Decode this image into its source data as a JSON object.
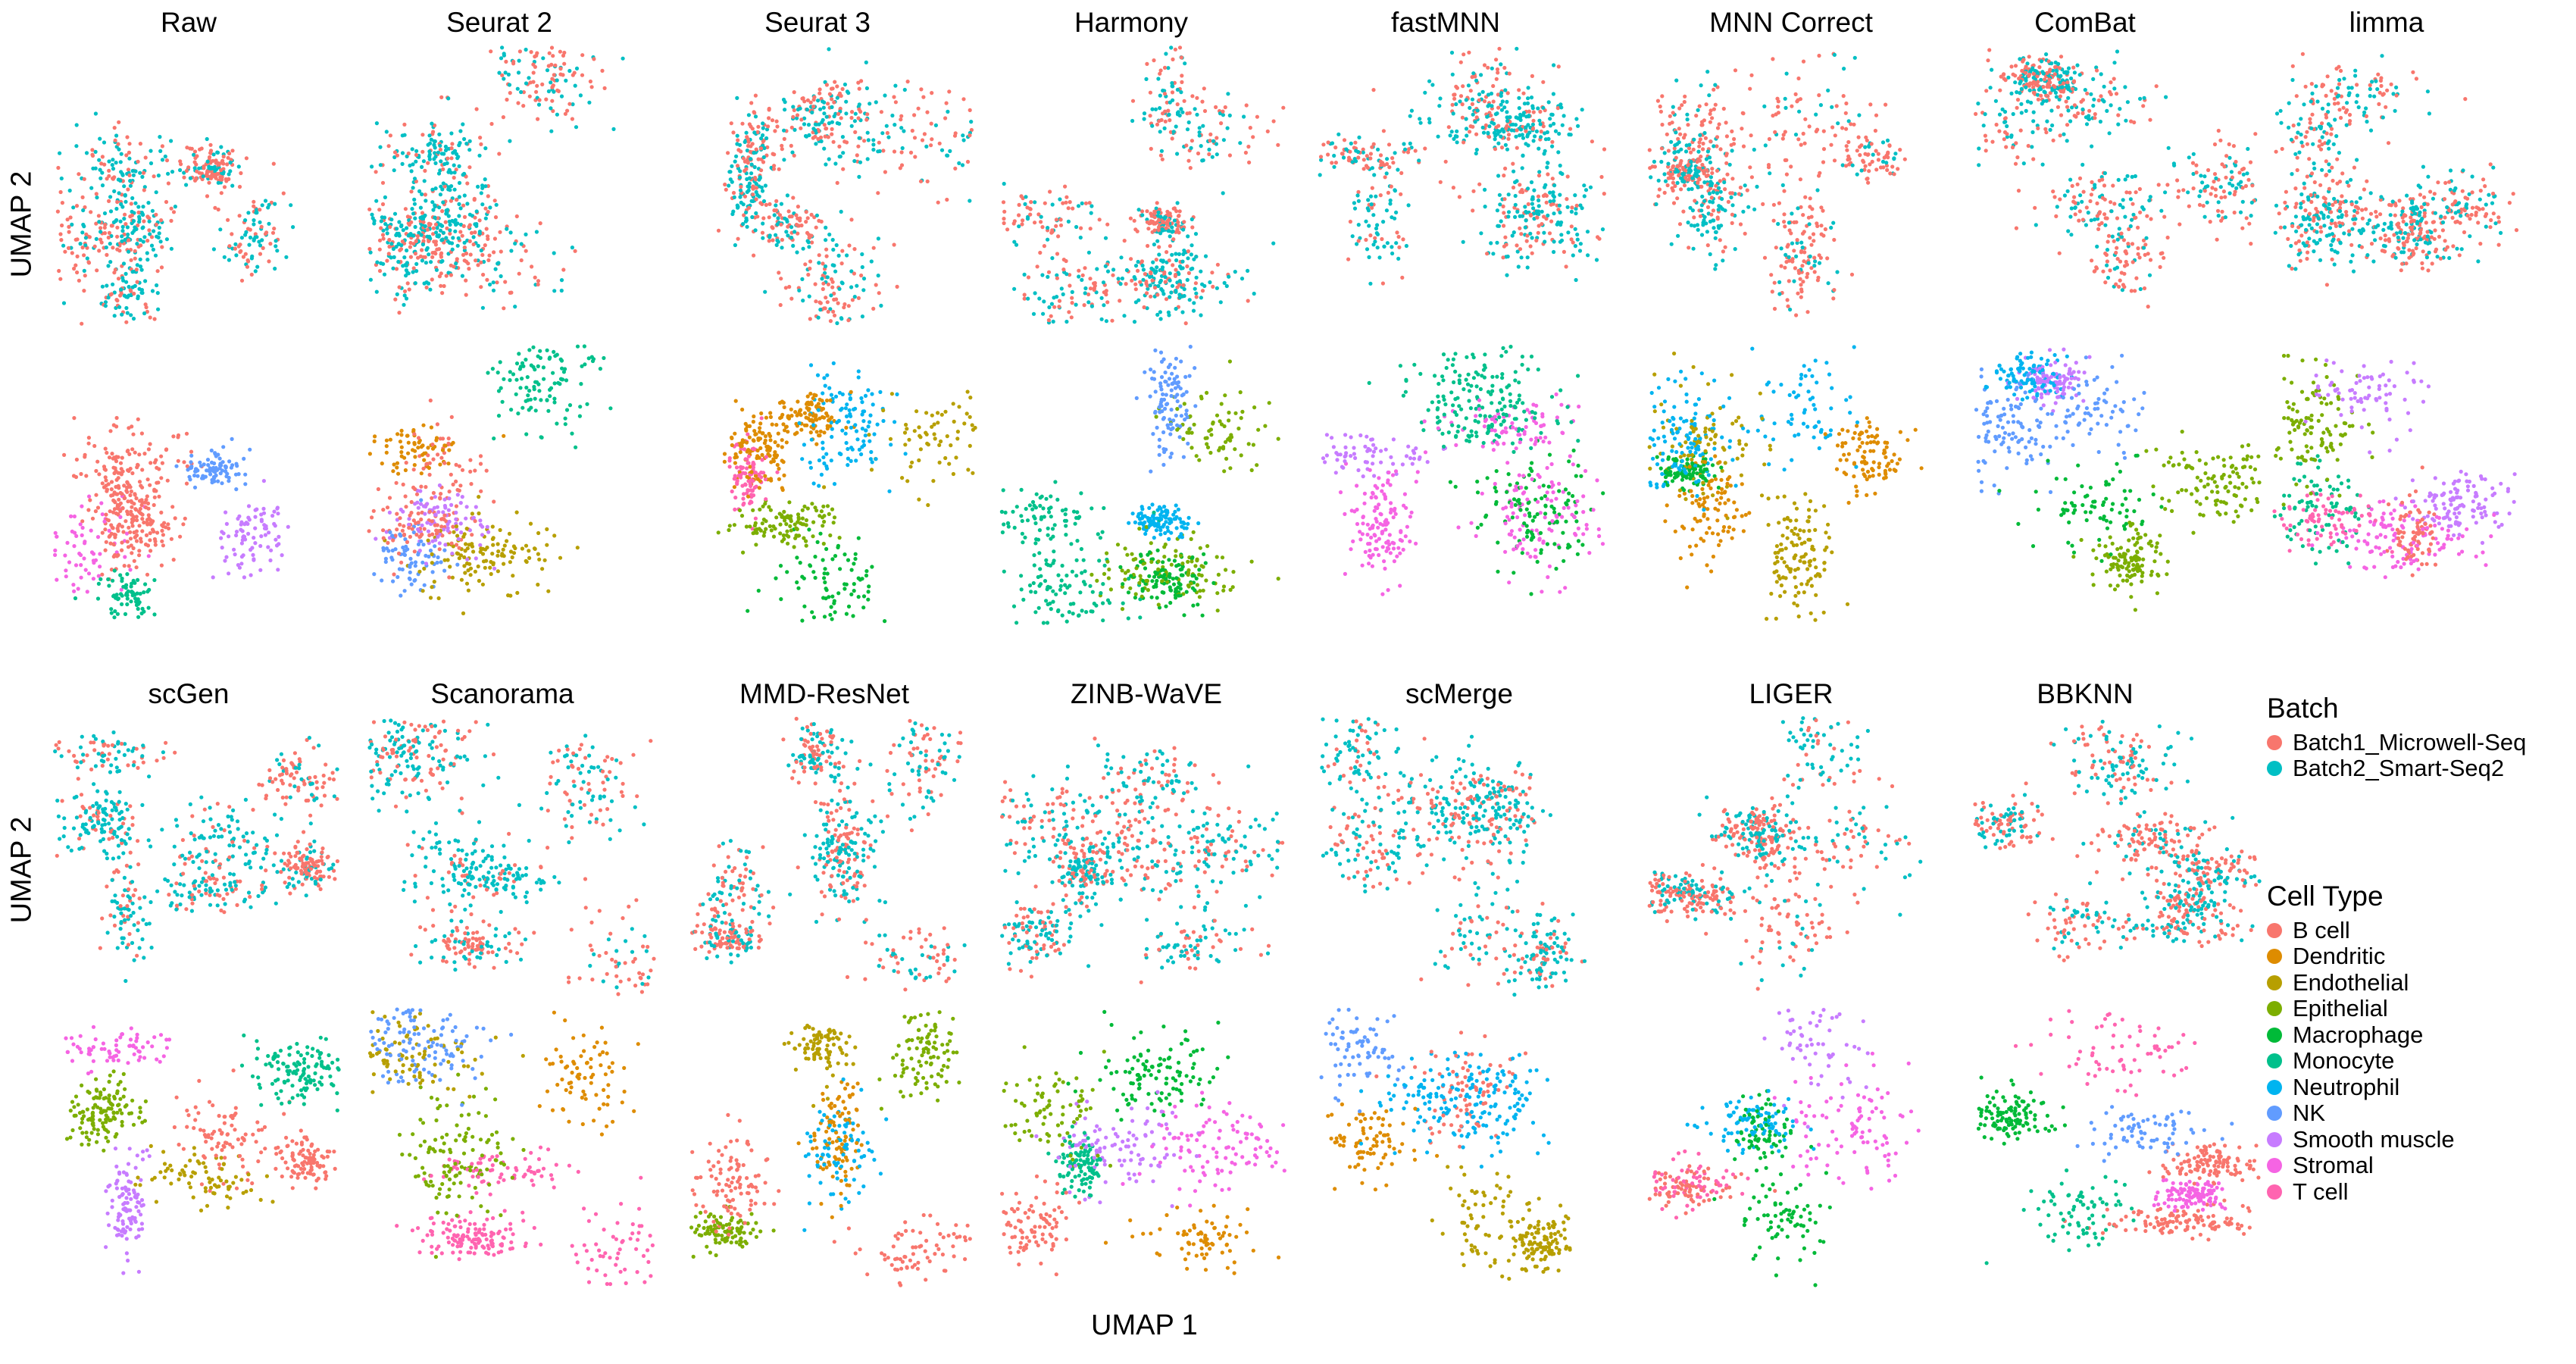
{
  "chart_data": {
    "type": "scatter",
    "xlabel": "UMAP 1",
    "ylabel": "UMAP 2",
    "methods": [
      "Raw",
      "Seurat 2",
      "Seurat 3",
      "Harmony",
      "fastMNN",
      "MNN Correct",
      "ComBat",
      "limma",
      "scGen",
      "Scanorama",
      "MMD-ResNet",
      "ZINB-WaVE",
      "scMerge",
      "LIGER",
      "BBKNN"
    ],
    "panel_rows": [
      "Batch",
      "Cell Type",
      "Batch",
      "Cell Type"
    ],
    "legends": {
      "batch": {
        "title": "Batch",
        "entries": [
          {
            "label": "Batch1_Microwell-Seq",
            "color": "#F8766D"
          },
          {
            "label": "Batch2_Smart-Seq2",
            "color": "#00BFC4"
          }
        ]
      },
      "cell_type": {
        "title": "Cell Type",
        "entries": [
          {
            "label": "B cell",
            "color": "#F8766D"
          },
          {
            "label": "Dendritic",
            "color": "#DE8C00"
          },
          {
            "label": "Endothelial",
            "color": "#B79F00"
          },
          {
            "label": "Epithelial",
            "color": "#7CAE00"
          },
          {
            "label": "Macrophage",
            "color": "#00BA38"
          },
          {
            "label": "Monocyte",
            "color": "#00C08B"
          },
          {
            "label": "Neutrophil",
            "color": "#00B4F0"
          },
          {
            "label": "NK",
            "color": "#619CFF"
          },
          {
            "label": "Smooth muscle",
            "color": "#C77CFF"
          },
          {
            "label": "Stromal",
            "color": "#F564E3"
          },
          {
            "label": "T cell",
            "color": "#FF64B0"
          }
        ]
      }
    }
  }
}
